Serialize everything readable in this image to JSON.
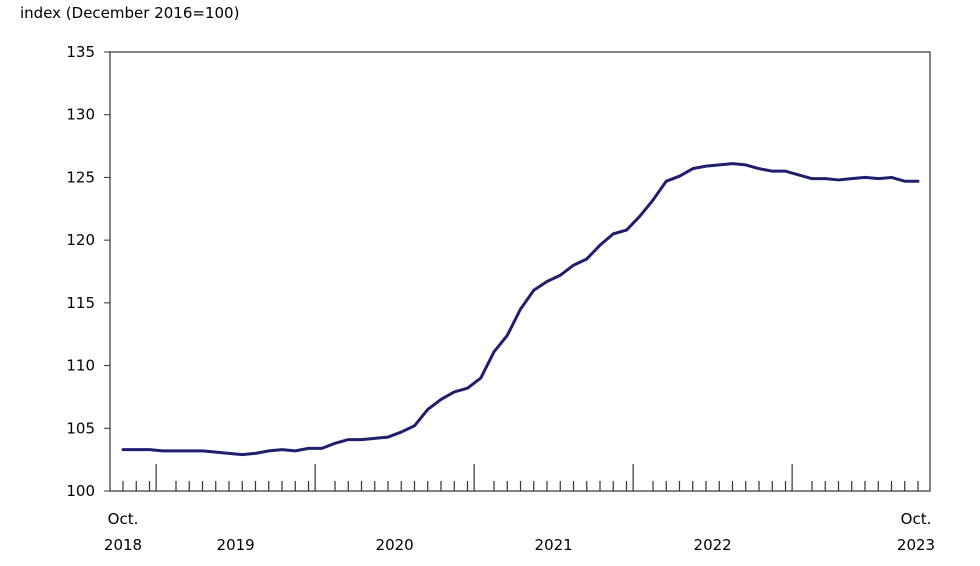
{
  "chart_data": {
    "type": "line",
    "title": "",
    "ylabel": "index (December 2016=100)",
    "xlabel": "",
    "ylim": [
      100,
      135
    ],
    "yticks": [
      100,
      105,
      110,
      115,
      120,
      125,
      130,
      135
    ],
    "x_start": "2018-10",
    "x_end": "2023-10",
    "year_labels": [
      {
        "year": "2019",
        "center": "2019-07"
      },
      {
        "year": "2020",
        "center": "2020-07"
      },
      {
        "year": "2021",
        "center": "2021-07"
      },
      {
        "year": "2022",
        "center": "2022-07"
      }
    ],
    "start_label": {
      "month": "Oct.",
      "year": "2018"
    },
    "end_label": {
      "month": "Oct.",
      "year": "2023"
    },
    "line_color": "#1f1f6e",
    "grid": false,
    "series": [
      {
        "x": [
          "2018-10",
          "2018-11",
          "2018-12",
          "2019-01",
          "2019-02",
          "2019-03",
          "2019-04",
          "2019-05",
          "2019-06",
          "2019-07",
          "2019-08",
          "2019-09",
          "2019-10",
          "2019-11",
          "2019-12",
          "2020-01",
          "2020-02",
          "2020-03",
          "2020-04",
          "2020-05",
          "2020-06",
          "2020-07",
          "2020-08",
          "2020-09",
          "2020-10",
          "2020-11",
          "2020-12",
          "2021-01",
          "2021-02",
          "2021-03",
          "2021-04",
          "2021-05",
          "2021-06",
          "2021-07",
          "2021-08",
          "2021-09",
          "2021-10",
          "2021-11",
          "2021-12",
          "2022-01",
          "2022-02",
          "2022-03",
          "2022-04",
          "2022-05",
          "2022-06",
          "2022-07",
          "2022-08",
          "2022-09",
          "2022-10",
          "2022-11",
          "2022-12",
          "2023-01",
          "2023-02",
          "2023-03",
          "2023-04",
          "2023-05",
          "2023-06",
          "2023-07",
          "2023-08",
          "2023-09",
          "2023-10"
        ],
        "values": [
          103.3,
          103.3,
          103.3,
          103.2,
          103.2,
          103.2,
          103.2,
          103.1,
          103.0,
          102.9,
          103.0,
          103.2,
          103.3,
          103.2,
          103.4,
          103.4,
          103.8,
          104.1,
          104.1,
          104.2,
          104.3,
          104.7,
          105.2,
          106.5,
          107.3,
          107.9,
          108.2,
          109.0,
          111.1,
          112.4,
          114.5,
          116.0,
          116.7,
          117.2,
          118.0,
          118.5,
          119.6,
          120.5,
          120.8,
          121.9,
          123.2,
          124.7,
          125.1,
          125.7,
          125.9,
          126.0,
          126.1,
          126.0,
          125.7,
          125.5,
          125.5,
          125.2,
          124.9,
          124.9,
          124.8,
          124.9,
          125.0,
          124.9,
          125.0,
          124.7,
          124.7
        ]
      }
    ]
  }
}
